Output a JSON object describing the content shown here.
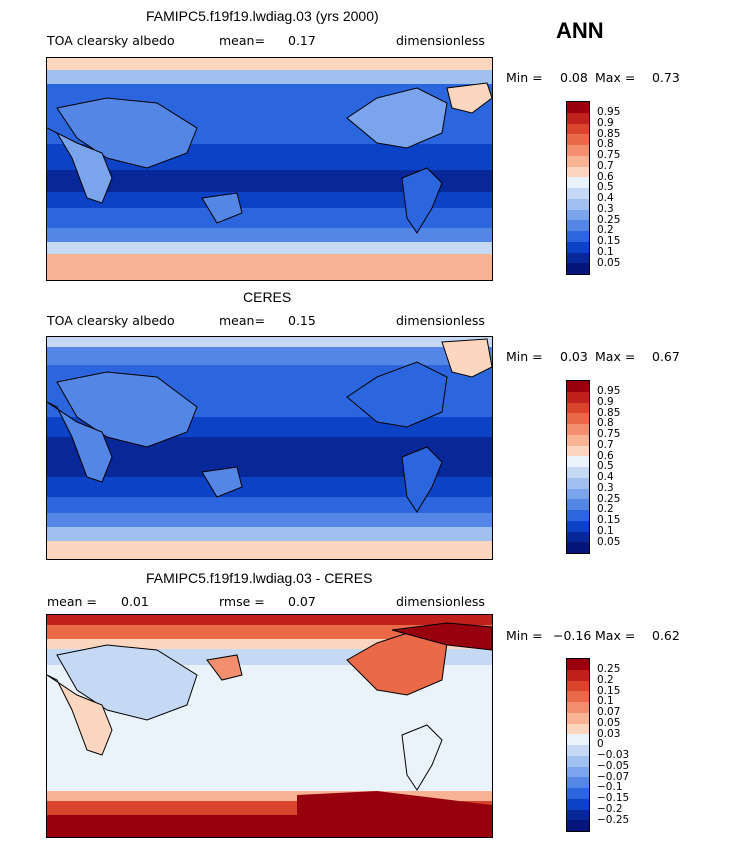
{
  "header": {
    "season": "ANN"
  },
  "panels": [
    {
      "title": "FAMIPC5.f19f19.lwdiag.03 (yrs 2000)",
      "left_label": "TOA clearsky albedo",
      "mid_label": "mean=",
      "mid_value": "0.17",
      "right_label": "dimensionless",
      "min_label": "Min =",
      "min_value": "0.08",
      "max_label": "Max =",
      "max_value": "0.73",
      "colorbar_labels": [
        "0.95",
        "0.9",
        "0.85",
        "0.8",
        "0.75",
        "0.7",
        "0.6",
        "0.5",
        "0.4",
        "0.3",
        "0.25",
        "0.2",
        "0.15",
        "0.1",
        "0.05"
      ],
      "colors": [
        "#99000d",
        "#c0211d",
        "#d8452c",
        "#ea6a47",
        "#f38f6f",
        "#f8b395",
        "#fdd6bf",
        "#eaf2fb",
        "#c6d9f4",
        "#a0c0f0",
        "#7aa4ec",
        "#5486e6",
        "#2c66de",
        "#0c43c6",
        "#08289a",
        "#06157a"
      ]
    },
    {
      "title": "CERES",
      "left_label": "TOA clearsky albedo",
      "mid_label": "mean=",
      "mid_value": "0.15",
      "right_label": "dimensionless",
      "min_label": "Min =",
      "min_value": "0.03",
      "max_label": "Max =",
      "max_value": "0.67",
      "colorbar_labels": [
        "0.95",
        "0.9",
        "0.85",
        "0.8",
        "0.75",
        "0.7",
        "0.6",
        "0.5",
        "0.4",
        "0.3",
        "0.25",
        "0.2",
        "0.15",
        "0.1",
        "0.05"
      ],
      "colors": [
        "#99000d",
        "#c0211d",
        "#d8452c",
        "#ea6a47",
        "#f38f6f",
        "#f8b395",
        "#fdd6bf",
        "#eaf2fb",
        "#c6d9f4",
        "#a0c0f0",
        "#7aa4ec",
        "#5486e6",
        "#2c66de",
        "#0c43c6",
        "#08289a",
        "#06157a"
      ]
    },
    {
      "title": "FAMIPC5.f19f19.lwdiag.03 - CERES",
      "left_label": "mean =",
      "left_value": "0.01",
      "mid_label": "rmse =",
      "mid_value": "0.07",
      "right_label": "dimensionless",
      "min_label": "Min =",
      "min_value": "−0.16",
      "max_label": "Max =",
      "max_value": "0.62",
      "colorbar_labels": [
        "0.25",
        "0.2",
        "0.15",
        "0.1",
        "0.07",
        "0.05",
        "0.03",
        "0",
        "−0.03",
        "−0.05",
        "−0.07",
        "−0.1",
        "−0.15",
        "−0.2",
        "−0.25"
      ],
      "colors": [
        "#99000d",
        "#c0211d",
        "#d8452c",
        "#ea6a47",
        "#f38f6f",
        "#f8b395",
        "#fdd6bf",
        "#eaf2fb",
        "#c6d9f4",
        "#a0c0f0",
        "#7aa4ec",
        "#5486e6",
        "#2c66de",
        "#0c43c6",
        "#08289a",
        "#06157a"
      ]
    }
  ]
}
